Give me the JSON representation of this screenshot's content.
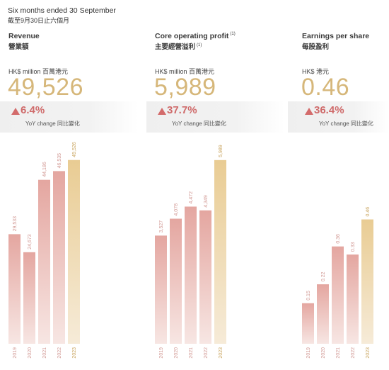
{
  "header": {
    "title": "Six months ended 30 September",
    "subtitle": "截至9月30日止六個月"
  },
  "colors": {
    "highlight_top": "#e9cc93",
    "highlight_bottom": "#f6ebd8",
    "bar_top": "#e4a6a0",
    "bar_bottom": "#f7e6e3",
    "label_normal": "#d29a95",
    "label_highlight": "#c9a45e",
    "big_value": "#d6b77a",
    "change": "#cf6a6a"
  },
  "panels": [
    {
      "title": "Revenue",
      "title_note": "",
      "subtitle": "營業額",
      "subtitle_note": "",
      "unit": "HK$ million 百萬港元",
      "big_value": "49,526",
      "change": "6.4%",
      "change_label": "YoY change 同比變化"
    },
    {
      "title": "Core operating profit",
      "title_note": "(1)",
      "subtitle": "主要經營溢利",
      "subtitle_note": "(1)",
      "unit": "HK$ million 百萬港元",
      "big_value": "5,989",
      "change": "37.7%",
      "change_label": "YoY change 同比變化"
    },
    {
      "title": "Earnings per share",
      "title_note": "",
      "subtitle": "每股盈利",
      "subtitle_note": "",
      "unit": "HK$ 港元",
      "big_value": "0.46",
      "change": "36.4%",
      "change_label": "YoY change 同比變化"
    }
  ],
  "chart_data": [
    {
      "type": "bar",
      "categories": [
        "2019",
        "2020",
        "2021",
        "2022",
        "2023"
      ],
      "values": [
        29533,
        24673,
        44186,
        46535,
        49526
      ],
      "labels": [
        "29,533",
        "24,673",
        "44,186",
        "46,535",
        "49,526"
      ],
      "ylim": [
        0,
        51000
      ],
      "highlight": "2023"
    },
    {
      "type": "bar",
      "categories": [
        "2019",
        "2020",
        "2021",
        "2022",
        "2023"
      ],
      "values": [
        3527,
        4078,
        4472,
        4349,
        5989
      ],
      "labels": [
        "3,527",
        "4,078",
        "4,472",
        "4,349",
        "5,989"
      ],
      "ylim": [
        0,
        6170
      ],
      "highlight": "2023"
    },
    {
      "type": "bar",
      "categories": [
        "2019",
        "2020",
        "2021",
        "2022",
        "2023"
      ],
      "values": [
        0.15,
        0.22,
        0.36,
        0.33,
        0.46
      ],
      "labels": [
        "0.15",
        "0.22",
        "0.36",
        "0.33",
        "0.46"
      ],
      "ylim": [
        0,
        0.7
      ],
      "highlight": "2023"
    }
  ]
}
